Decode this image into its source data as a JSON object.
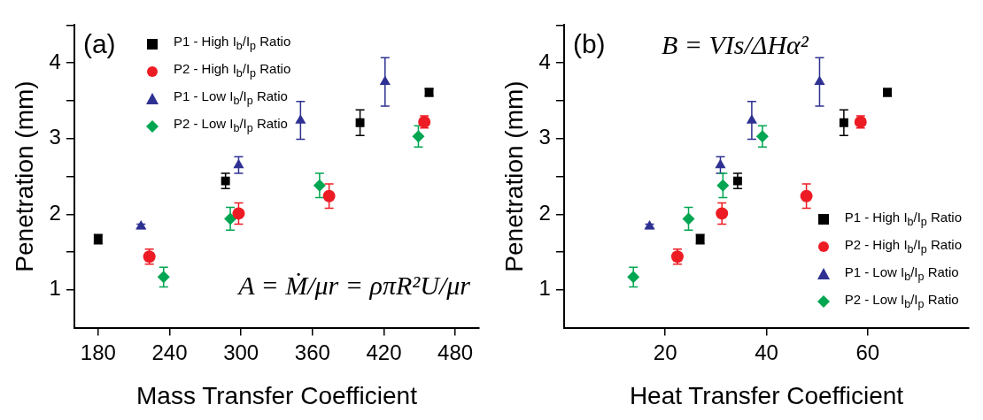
{
  "chart_data": [
    {
      "type": "scatter",
      "xlabel": "Mass Transfer Coefficient",
      "ylabel": "Penetration (mm)",
      "xlim": [
        160,
        500
      ],
      "xticks": [
        180,
        240,
        300,
        360,
        420,
        480
      ],
      "ylim": [
        0.5,
        4.5
      ],
      "yticks": [
        1,
        {
          "value": 1.5,
          "label": null
        },
        2,
        {
          "value": 2.5,
          "label": null
        },
        3,
        {
          "value": 3.5,
          "label": null
        },
        4,
        {
          "value": 4.5,
          "label": null
        }
      ],
      "legend": "top left",
      "annotations": [
        "(a)",
        "A = Ṁ/μr = ρπR²U/μr"
      ],
      "series": [
        {
          "name": "P1 - High I$_{b}$/I$_{p}$ Ratio",
          "color": "#000000",
          "marker": "square",
          "x": [
            180,
            287,
            400,
            458
          ],
          "values": [
            1.67,
            2.44,
            3.21,
            3.61
          ],
          "errors": [
            0.06,
            0.1,
            0.17,
            0.05
          ]
        },
        {
          "name": "P2 - High I$_{b}$/I$_{p}$ Ratio",
          "color": "#ed1c24",
          "marker": "circle",
          "x": [
            223,
            298,
            374,
            454
          ],
          "values": [
            1.44,
            2.01,
            2.24,
            3.22
          ],
          "errors": [
            0.1,
            0.14,
            0.16,
            0.08
          ]
        },
        {
          "name": "P1 - Low I$_{b}$/I$_{p}$ Ratio",
          "color": "#2e3192",
          "marker": "triangle",
          "x": [
            216,
            298,
            350,
            421
          ],
          "values": [
            1.84,
            2.65,
            3.24,
            3.75
          ],
          "errors": [
            0.03,
            0.11,
            0.25,
            0.32
          ]
        },
        {
          "name": "P2 - Low I$_{b}$/I$_{p}$ Ratio",
          "color": "#00a651",
          "marker": "diamond",
          "x": [
            235,
            291,
            366,
            449
          ],
          "values": [
            1.17,
            1.94,
            2.38,
            3.03
          ],
          "errors": [
            0.13,
            0.15,
            0.16,
            0.14
          ]
        }
      ]
    },
    {
      "type": "scatter",
      "xlabel": "Heat Transfer Coefficient",
      "ylabel": "Penetration (mm)",
      "xlim": [
        0,
        80
      ],
      "xticks": [
        20,
        40,
        60
      ],
      "ylim": [
        0.5,
        4.5
      ],
      "yticks": [
        1,
        {
          "value": 1.5,
          "label": null
        },
        2,
        {
          "value": 2.5,
          "label": null
        },
        3,
        {
          "value": 3.5,
          "label": null
        },
        4,
        {
          "value": 4.5,
          "label": null
        }
      ],
      "legend": "bottom right",
      "annotations": [
        "(b)",
        "B = VIs/ΔHα²"
      ],
      "series": [
        {
          "name": "P1 - High I$_{b}$/I$_{p}$ Ratio",
          "color": "#000000",
          "marker": "square",
          "x": [
            26.9,
            34.3,
            55.3,
            63.9
          ],
          "values": [
            1.67,
            2.44,
            3.21,
            3.61
          ],
          "errors": [
            0.06,
            0.1,
            0.17,
            0.05
          ]
        },
        {
          "name": "P2 - High I$_{b}$/I$_{p}$ Ratio",
          "color": "#ed1c24",
          "marker": "circle",
          "x": [
            22.4,
            31.2,
            47.9,
            58.6
          ],
          "values": [
            1.44,
            2.01,
            2.24,
            3.22
          ],
          "errors": [
            0.1,
            0.14,
            0.16,
            0.08
          ]
        },
        {
          "name": "P1 - Low I$_{b}$/I$_{p}$ Ratio",
          "color": "#2e3192",
          "marker": "triangle",
          "x": [
            16.9,
            30.9,
            37.1,
            50.5
          ],
          "values": [
            1.84,
            2.65,
            3.24,
            3.75
          ],
          "errors": [
            0.03,
            0.11,
            0.25,
            0.32
          ]
        },
        {
          "name": "P2 - Low I$_{b}$/I$_{p}$ Ratio",
          "color": "#00a651",
          "marker": "diamond",
          "x": [
            13.7,
            24.6,
            31.4,
            39.2
          ],
          "values": [
            1.17,
            1.94,
            2.38,
            3.03
          ],
          "errors": [
            0.13,
            0.15,
            0.16,
            0.14
          ]
        }
      ]
    }
  ]
}
